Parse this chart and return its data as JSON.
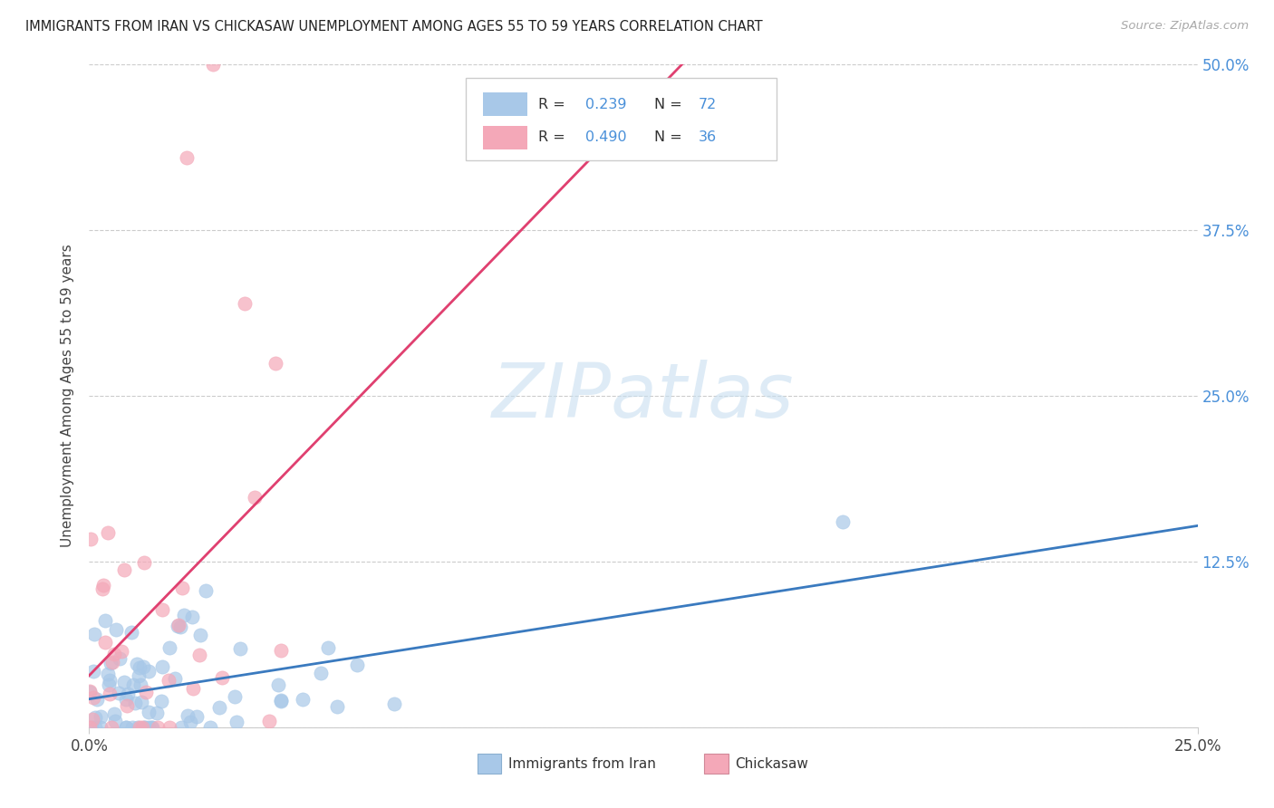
{
  "title": "IMMIGRANTS FROM IRAN VS CHICKASAW UNEMPLOYMENT AMONG AGES 55 TO 59 YEARS CORRELATION CHART",
  "source": "Source: ZipAtlas.com",
  "ylabel_label": "Unemployment Among Ages 55 to 59 years",
  "legend_label1": "Immigrants from Iran",
  "legend_label2": "Chickasaw",
  "R1": 0.239,
  "N1": 72,
  "R2": 0.49,
  "N2": 36,
  "color_blue": "#a8c8e8",
  "color_pink": "#f4a8b8",
  "line_color_blue": "#3a7abf",
  "line_color_pink": "#e04070",
  "line_color_dashed": "#c8a0b0",
  "watermark_color": "#c8dff0",
  "watermark_text": "ZIPatlas",
  "xlim": [
    0.0,
    0.25
  ],
  "ylim": [
    0.0,
    0.5
  ],
  "background_color": "#ffffff",
  "grid_color": "#cccccc",
  "tick_color_right": "#4a90d9",
  "title_color": "#222222",
  "source_color": "#aaaaaa",
  "label_color": "#444444"
}
